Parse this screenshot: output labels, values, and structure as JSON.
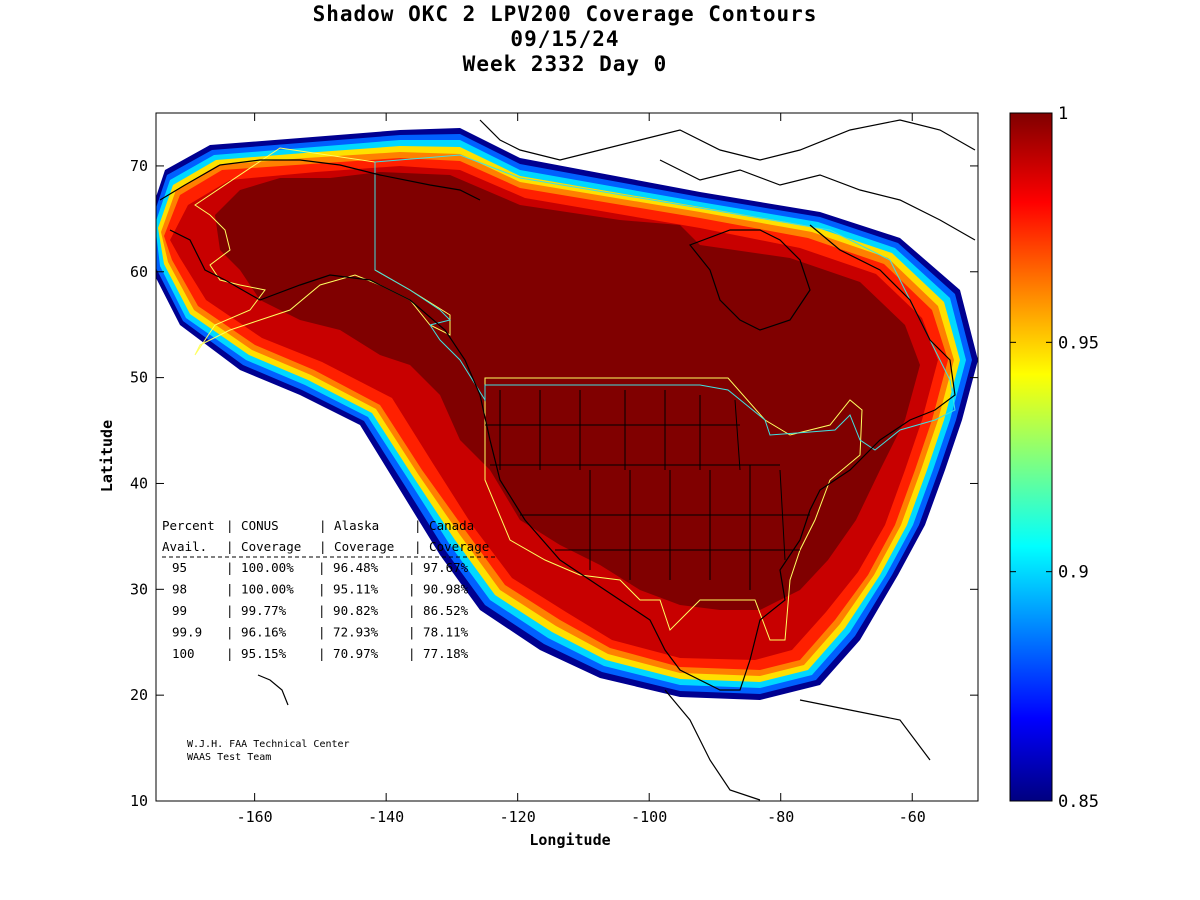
{
  "title": {
    "line1": "Shadow OKC 2 LPV200 Coverage Contours",
    "line2": "09/15/24",
    "line3": "Week 2332 Day 0"
  },
  "axes": {
    "xlabel": "Longitude",
    "ylabel": "Latitude",
    "xlim": [
      -175,
      -50
    ],
    "ylim": [
      10,
      75
    ],
    "xticks": [
      -160,
      -140,
      -120,
      -100,
      -80,
      -60
    ],
    "yticks": [
      10,
      20,
      30,
      40,
      50,
      60,
      70
    ]
  },
  "colorbar": {
    "min": 0.85,
    "max": 1,
    "tick_labels": [
      "1",
      "0.95",
      "0.9",
      "0.85"
    ],
    "tick_values": [
      1,
      0.95,
      0.9,
      0.85
    ]
  },
  "stats_table": {
    "header1": [
      "Percent",
      "CONUS",
      "Alaska",
      "Canada"
    ],
    "header2": [
      "Avail.",
      "Coverage",
      "Coverage",
      "Coverage"
    ],
    "rows": [
      [
        "95",
        "100.00%",
        "96.48%",
        "97.67%"
      ],
      [
        "98",
        "100.00%",
        "95.11%",
        "90.98%"
      ],
      [
        "99",
        "99.77%",
        "90.82%",
        "86.52%"
      ],
      [
        "99.9",
        "96.16%",
        "72.93%",
        "78.11%"
      ],
      [
        "100",
        "95.15%",
        "70.97%",
        "77.18%"
      ]
    ]
  },
  "credit": {
    "line1": "W.J.H. FAA Technical Center",
    "line2": "WAAS Test Team"
  },
  "colors": {
    "full_coverage": "#800000",
    "high": "#c00000",
    "edge_red": "#ff2000",
    "orange": "#ff9000",
    "yellow": "#ffff00",
    "cyan": "#00e0ff",
    "blue": "#0040ff",
    "navy": "#000090",
    "boundary_yellow": "#ffff60",
    "boundary_cyan": "#40e0e0"
  }
}
